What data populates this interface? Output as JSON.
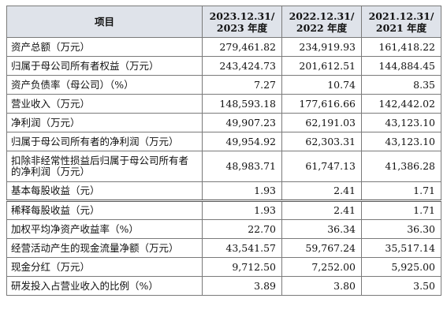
{
  "header": {
    "item": "项目",
    "periods": [
      {
        "line1": "2023.12.31/",
        "line2": "2023 年度"
      },
      {
        "line1": "2022.12.31/",
        "line2": "2022 年度"
      },
      {
        "line1": "2021.12.31/",
        "line2": "2021 年度"
      }
    ]
  },
  "rows": [
    {
      "label": "资产总额（万元）",
      "values": [
        "279,461.82",
        "234,919.93",
        "161,418.22"
      ]
    },
    {
      "label": "归属于母公司所有者权益（万元）",
      "values": [
        "243,424.73",
        "201,612.51",
        "144,884.45"
      ]
    },
    {
      "label": "资产负债率（母公司）（%）",
      "values": [
        "7.27",
        "10.74",
        "8.35"
      ]
    },
    {
      "label": "营业收入（万元）",
      "values": [
        "148,593.18",
        "177,616.66",
        "142,442.02"
      ]
    },
    {
      "label": "净利润（万元）",
      "values": [
        "49,907.23",
        "62,191.03",
        "43,123.10"
      ]
    },
    {
      "label": "归属于母公司所有者的净利润（万元）",
      "values": [
        "49,954.92",
        "62,303.31",
        "43,123.10"
      ]
    },
    {
      "label": "扣除非经常性损益后归属于母公司所有者的净利润（万元）",
      "values": [
        "48,983.71",
        "61,747.13",
        "41,386.28"
      ]
    },
    {
      "label": "基本每股收益（元）",
      "values": [
        "1.93",
        "2.41",
        "1.71"
      ]
    },
    {
      "label": "稀释每股收益（元）",
      "values": [
        "1.93",
        "2.41",
        "1.71"
      ]
    },
    {
      "label": "加权平均净资产收益率（%）",
      "values": [
        "22.70",
        "36.34",
        "36.30"
      ]
    },
    {
      "label": "经营活动产生的现金流量净额（万元）",
      "values": [
        "43,541.57",
        "59,767.24",
        "35,517.14"
      ]
    },
    {
      "label": "现金分红（万元）",
      "values": [
        "9,712.50",
        "7,252.00",
        "5,925.00"
      ]
    },
    {
      "label": "研发投入占营业收入的比例（%）",
      "values": [
        "3.89",
        "3.80",
        "3.50"
      ]
    }
  ]
}
